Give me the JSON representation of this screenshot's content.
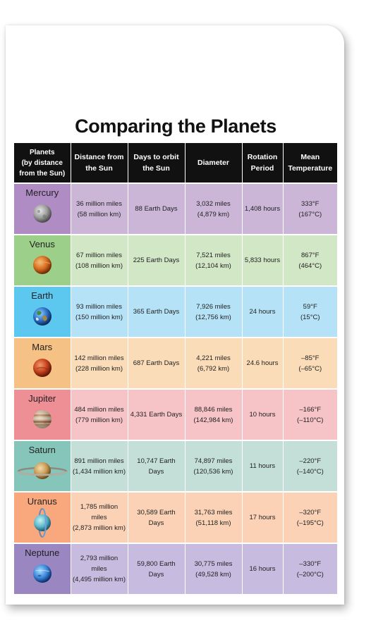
{
  "title": "Comparing the Planets",
  "headers": {
    "planets": [
      "Planets",
      "(by distance",
      "from the Sun)"
    ],
    "distance": [
      "Distance from",
      "the Sun"
    ],
    "days": [
      "Days to orbit",
      "the Sun"
    ],
    "diameter": "Diameter",
    "rotation": [
      "Rotation",
      "Period"
    ],
    "temperature": [
      "Mean",
      "Temperature"
    ]
  },
  "rows": [
    {
      "name": "Mercury",
      "icon": "mercury-icon",
      "bg": "#b08cc4",
      "bgLight": "#ccb6d8",
      "distance": [
        "36 million miles",
        "(58 million km)"
      ],
      "days": "88 Earth Days",
      "diameter": [
        "3,032 miles",
        "(4,879 km)"
      ],
      "rotation": "1,408 hours",
      "temp": [
        "333°F",
        "(167°C)"
      ]
    },
    {
      "name": "Venus",
      "icon": "venus-icon",
      "bg": "#9ccf8a",
      "bgLight": "#d2e7c6",
      "distance": [
        "67 million miles",
        "(108 million km)"
      ],
      "days": "225 Earth Days",
      "diameter": [
        "7,521 miles",
        "(12,104 km)"
      ],
      "rotation": "5,833 hours",
      "temp": [
        "867°F",
        "(464°C)"
      ]
    },
    {
      "name": "Earth",
      "icon": "earth-icon",
      "bg": "#5cc8f0",
      "bgLight": "#b5e2f6",
      "distance": [
        "93 million miles",
        "(150 million km)"
      ],
      "days": "365 Earth Days",
      "diameter": [
        "7,926 miles",
        "(12,756 km)"
      ],
      "rotation": "24 hours",
      "temp": [
        "59°F",
        "(15°C)"
      ]
    },
    {
      "name": "Mars",
      "icon": "mars-icon",
      "bg": "#f6c184",
      "bgLight": "#fbdcb8",
      "distance": [
        "142 million miles",
        "(228 million km)"
      ],
      "days": "687 Earth Days",
      "diameter": [
        "4,221 miles",
        "(6,792 km)"
      ],
      "rotation": "24.6 hours",
      "temp": [
        "–85°F",
        "(–65°C)"
      ]
    },
    {
      "name": "Jupiter",
      "icon": "jupiter-icon",
      "bg": "#ee8e95",
      "bgLight": "#f6c3c6",
      "distance": [
        "484 million miles",
        "(779 million km)"
      ],
      "days": "4,331 Earth Days",
      "diameter": [
        "88,846 miles",
        "(142,984 km)"
      ],
      "rotation": "10 hours",
      "temp": [
        "–166°F",
        "(–110°C)"
      ]
    },
    {
      "name": "Saturn",
      "icon": "saturn-icon",
      "bg": "#86c6ba",
      "bgLight": "#c3dfd8",
      "distance": [
        "891 million miles",
        "(1,434 million km)"
      ],
      "days": "10,747 Earth Days",
      "diameter": [
        "74,897 miles",
        "(120,536 km)"
      ],
      "rotation": "11 hours",
      "temp": [
        "–220°F",
        "(–140°C)"
      ]
    },
    {
      "name": "Uranus",
      "icon": "uranus-icon",
      "bg": "#f8a87c",
      "bgLight": "#fbd2b6",
      "distance": [
        "1,785 million miles",
        "(2,873 million km)"
      ],
      "days": "30,589 Earth Days",
      "diameter": [
        "31,763 miles",
        "(51,118 km)"
      ],
      "rotation": "17 hours",
      "temp": [
        "–320°F",
        "(–195°C)"
      ]
    },
    {
      "name": "Neptune",
      "icon": "neptune-icon",
      "bg": "#9a86c0",
      "bgLight": "#c7bbe0",
      "distance": [
        "2,793 million miles",
        "(4,495 million km)"
      ],
      "days": "59,800 Earth Days",
      "diameter": [
        "30,775 miles",
        "(49,528 km)"
      ],
      "rotation": "16 hours",
      "temp": [
        "–330°F",
        "(–200°C)"
      ]
    }
  ]
}
